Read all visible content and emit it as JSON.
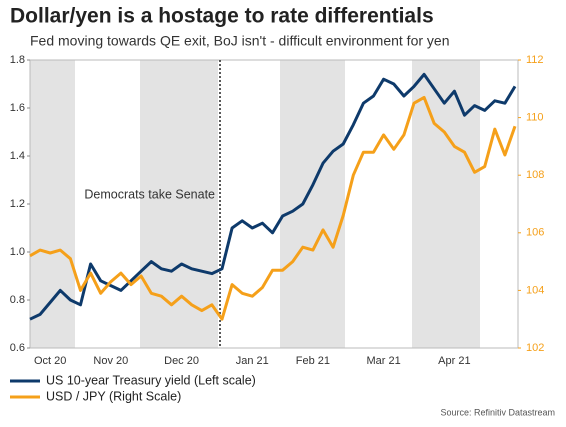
{
  "chart_data": {
    "type": "line",
    "title": "Dollar/yen is a hostage to rate differentials",
    "subtitle": "Fed moving towards QE exit, BoJ isn't - difficult environment for yen",
    "annotation": "Democrats take Senate",
    "source": "Source: Refinitiv Datastream",
    "categories": [
      null,
      null,
      "Oct 20",
      null,
      null,
      null,
      null,
      null,
      "Nov 20",
      null,
      null,
      null,
      null,
      null,
      null,
      "Dec 20",
      null,
      null,
      null,
      null,
      null,
      null,
      "Jan 21",
      null,
      null,
      null,
      null,
      null,
      "Feb 21",
      null,
      null,
      null,
      null,
      null,
      null,
      "Mar 21",
      null,
      null,
      null,
      null,
      null,
      null,
      "Apr 21",
      null,
      null,
      null,
      null,
      null,
      null
    ],
    "series": [
      {
        "name": "US 10-year Treasury yield (Left scale)",
        "color": "#0e3a6b",
        "axis": "y",
        "values": [
          0.72,
          0.74,
          0.79,
          0.84,
          0.8,
          0.78,
          0.95,
          0.88,
          0.86,
          0.84,
          0.88,
          0.92,
          0.96,
          0.93,
          0.92,
          0.95,
          0.93,
          0.92,
          0.91,
          0.93,
          1.1,
          1.13,
          1.1,
          1.12,
          1.08,
          1.15,
          1.17,
          1.2,
          1.28,
          1.37,
          1.42,
          1.45,
          1.53,
          1.62,
          1.65,
          1.72,
          1.7,
          1.65,
          1.69,
          1.74,
          1.68,
          1.62,
          1.67,
          1.57,
          1.61,
          1.59,
          1.63,
          1.62,
          1.69
        ]
      },
      {
        "name": "USD / JPY (Right Scale)",
        "color": "#f5a01a",
        "axis": "y2",
        "values": [
          105.2,
          105.4,
          105.3,
          105.4,
          105.1,
          104.0,
          104.6,
          103.9,
          104.3,
          104.6,
          104.2,
          104.5,
          103.9,
          103.8,
          103.5,
          103.8,
          103.5,
          103.3,
          103.5,
          103.0,
          104.2,
          103.9,
          103.8,
          104.1,
          104.7,
          104.7,
          105.0,
          105.5,
          105.4,
          106.1,
          105.5,
          106.6,
          108.0,
          108.8,
          108.8,
          109.4,
          108.9,
          109.4,
          110.5,
          110.7,
          109.8,
          109.5,
          109.0,
          108.8,
          108.1,
          108.3,
          109.6,
          108.7,
          109.7
        ]
      }
    ],
    "ylim": [
      0.6,
      1.8
    ],
    "yticks": [
      0.6,
      0.8,
      {
        "value": 1,
        "label": "1.0"
      },
      1.2,
      1.4,
      1.6,
      1.8
    ],
    "y2lim": [
      102,
      112
    ],
    "y2ticks": [
      102,
      104,
      106,
      108,
      110,
      112
    ]
  }
}
